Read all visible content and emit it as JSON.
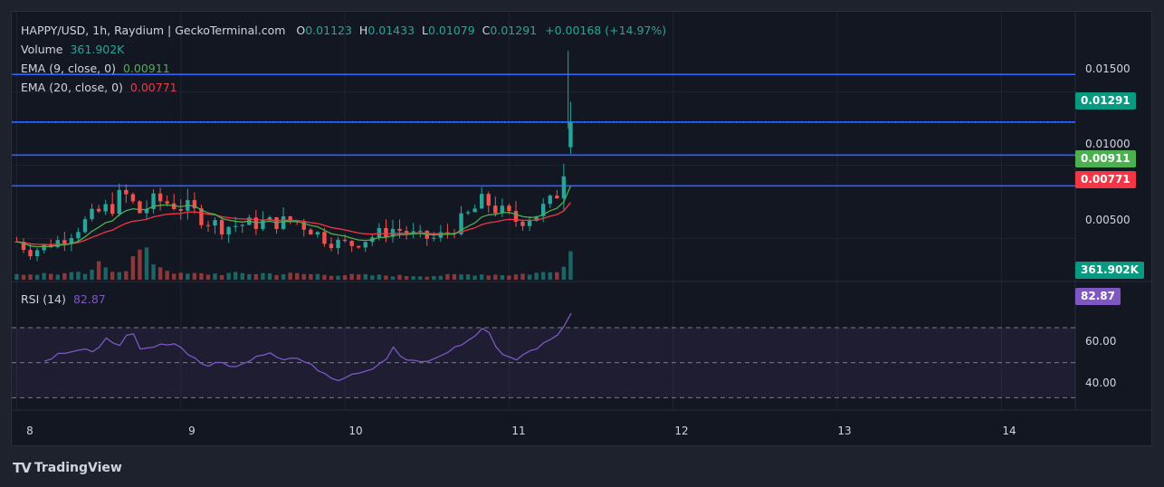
{
  "header": {
    "symbol": "HAPPY/USD, 1h, Raydium | GeckoTerminal.com",
    "o_label": "O",
    "o_value": "0.01123",
    "h_label": "H",
    "h_value": "0.01433",
    "l_label": "L",
    "l_value": "0.01079",
    "c_label": "C",
    "c_value": "0.01291",
    "change": "+0.00168 (+14.97%)"
  },
  "volume_legend": {
    "label": "Volume",
    "value": "361.902K"
  },
  "ema9_legend": {
    "label": "EMA (9, close, 0)",
    "value": "0.00911"
  },
  "ema20_legend": {
    "label": "EMA (20, close, 0)",
    "value": "0.00771"
  },
  "rsi_legend": {
    "label": "RSI (14)",
    "value": "82.87"
  },
  "badges": {
    "price": "0.01291",
    "ema9": "0.00911",
    "ema20": "0.00771",
    "volume": "361.902K",
    "rsi": "82.87"
  },
  "colors": {
    "up": "#26a69a",
    "down": "#ef5350",
    "ema9": "#4caf50",
    "ema20": "#f23645",
    "rsi": "#7e57c2",
    "hline": "#2962ff",
    "background": "#131722"
  },
  "footer": {
    "brand": "TradingView"
  },
  "chart_data": {
    "type": "candlestick",
    "price_axis": {
      "ticks": [
        "0.01500",
        "0.01000",
        "0.00500"
      ],
      "range": [
        0.0022,
        0.018
      ]
    },
    "rsi_axis": {
      "ticks": [
        "60.00",
        "40.00"
      ],
      "bands": [
        70,
        50,
        30
      ],
      "range": [
        25,
        85
      ]
    },
    "x_ticks": [
      "8",
      "9",
      "10",
      "11",
      "12",
      "13",
      "14"
    ],
    "x_range": [
      7.97,
      14.45
    ],
    "horizontal_lines": [
      0.0162,
      0.01295,
      0.0107,
      0.0086
    ],
    "ema9_last": 0.00911,
    "ema20_last": 0.00771,
    "rsi_last": 82.87,
    "volume_last": "361.902K",
    "candle_anchors": [
      [
        8.0,
        0.0048
      ],
      [
        8.08,
        0.0041
      ],
      [
        8.18,
        0.0045
      ],
      [
        8.3,
        0.0051
      ],
      [
        8.4,
        0.006
      ],
      [
        8.5,
        0.0068
      ],
      [
        8.58,
        0.0072
      ],
      [
        8.65,
        0.0081
      ],
      [
        8.75,
        0.0068
      ],
      [
        8.85,
        0.0076
      ],
      [
        8.95,
        0.0074
      ],
      [
        9.05,
        0.007
      ],
      [
        9.15,
        0.0063
      ],
      [
        9.25,
        0.0058
      ],
      [
        9.4,
        0.006
      ],
      [
        9.55,
        0.0061
      ],
      [
        9.7,
        0.0062
      ],
      [
        9.8,
        0.0056
      ],
      [
        9.9,
        0.0048
      ],
      [
        10.05,
        0.0046
      ],
      [
        10.2,
        0.0053
      ],
      [
        10.3,
        0.0057
      ],
      [
        10.45,
        0.0051
      ],
      [
        10.55,
        0.005
      ],
      [
        10.65,
        0.0056
      ],
      [
        10.75,
        0.0066
      ],
      [
        10.85,
        0.0076
      ],
      [
        10.95,
        0.0068
      ],
      [
        11.05,
        0.0062
      ],
      [
        11.15,
        0.0066
      ],
      [
        11.25,
        0.0074
      ],
      [
        11.3,
        0.0083
      ],
      [
        11.36,
        0.0112
      ],
      [
        11.4,
        0.0129
      ]
    ],
    "volume_anchors": [
      [
        8.0,
        0.1
      ],
      [
        8.45,
        0.12
      ],
      [
        8.5,
        0.35
      ],
      [
        8.65,
        0.18
      ],
      [
        8.75,
        0.7
      ],
      [
        8.9,
        0.25
      ],
      [
        9.0,
        0.1
      ],
      [
        9.5,
        0.12
      ],
      [
        10.0,
        0.08
      ],
      [
        10.5,
        0.05
      ],
      [
        10.8,
        0.1
      ],
      [
        11.0,
        0.08
      ],
      [
        11.25,
        0.15
      ],
      [
        11.32,
        0.3
      ],
      [
        11.36,
        1.0
      ],
      [
        11.4,
        0.25
      ]
    ],
    "rsi_anchors": [
      [
        8.17,
        51
      ],
      [
        8.25,
        55
      ],
      [
        8.33,
        57
      ],
      [
        8.42,
        58
      ],
      [
        8.48,
        55
      ],
      [
        8.55,
        64
      ],
      [
        8.62,
        60
      ],
      [
        8.7,
        68
      ],
      [
        8.75,
        57
      ],
      [
        8.85,
        59
      ],
      [
        8.95,
        62
      ],
      [
        9.05,
        55
      ],
      [
        9.15,
        48
      ],
      [
        9.25,
        50
      ],
      [
        9.35,
        47
      ],
      [
        9.45,
        54
      ],
      [
        9.55,
        56
      ],
      [
        9.62,
        52
      ],
      [
        9.7,
        53
      ],
      [
        9.8,
        48
      ],
      [
        9.9,
        43
      ],
      [
        9.95,
        40
      ],
      [
        10.05,
        44
      ],
      [
        10.15,
        46
      ],
      [
        10.25,
        52
      ],
      [
        10.3,
        59
      ],
      [
        10.35,
        52
      ],
      [
        10.45,
        50
      ],
      [
        10.55,
        52
      ],
      [
        10.6,
        55
      ],
      [
        10.7,
        60
      ],
      [
        10.78,
        64
      ],
      [
        10.85,
        71
      ],
      [
        10.9,
        63
      ],
      [
        10.95,
        55
      ],
      [
        11.05,
        52
      ],
      [
        11.12,
        56
      ],
      [
        11.2,
        60
      ],
      [
        11.25,
        64
      ],
      [
        11.32,
        67
      ],
      [
        11.36,
        76
      ],
      [
        11.4,
        82.87
      ]
    ]
  }
}
